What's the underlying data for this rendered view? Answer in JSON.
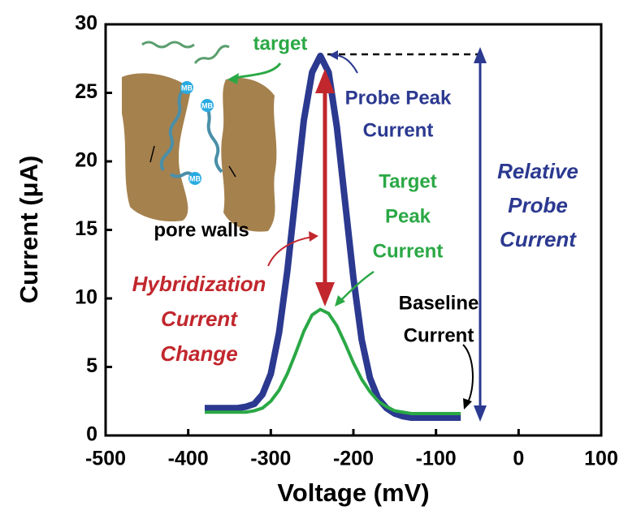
{
  "chart_data": {
    "type": "line",
    "x_label": "Voltage (mV)",
    "y_label": "Current (μA)",
    "x": [
      -380,
      -370,
      -360,
      -350,
      -340,
      -330,
      -320,
      -310,
      -300,
      -290,
      -280,
      -270,
      -260,
      -250,
      -240,
      -230,
      -220,
      -210,
      -200,
      -190,
      -180,
      -170,
      -160,
      -150,
      -140,
      -130,
      -120,
      -110,
      -100,
      -90,
      -80,
      -70
    ],
    "series": [
      {
        "color": "#2b3990",
        "values": [
          2.0,
          2.0,
          2.0,
          2.0,
          2.0,
          2.1,
          2.3,
          3.0,
          4.5,
          7.5,
          12,
          17.5,
          23,
          26.5,
          27.7,
          26.5,
          22.5,
          17,
          11.5,
          7,
          4.2,
          2.7,
          2.0,
          1.6,
          1.4,
          1.3,
          1.3,
          1.3,
          1.3,
          1.3,
          1.3,
          1.3
        ]
      },
      {
        "color": "#2aa845",
        "values": [
          1.7,
          1.7,
          1.7,
          1.7,
          1.7,
          1.7,
          1.8,
          2.0,
          2.5,
          3.3,
          4.5,
          6.0,
          7.6,
          8.8,
          9.2,
          8.9,
          8.0,
          6.7,
          5.3,
          4.1,
          3.2,
          2.5,
          2.1,
          1.8,
          1.7,
          1.6,
          1.6,
          1.6,
          1.6,
          1.6,
          1.6,
          1.6
        ]
      }
    ],
    "xlim": [
      -500,
      100
    ],
    "ylim": [
      0,
      30
    ],
    "xticks": [
      -500,
      -400,
      -300,
      -200,
      -100,
      0,
      100
    ],
    "yticks": [
      0,
      5,
      10,
      15,
      20,
      25,
      30
    ],
    "annotations": [
      {
        "lines": [
          "target"
        ],
        "color": "#2aa845"
      },
      {
        "lines": [
          "Probe Peak",
          "Current"
        ],
        "color": "#2b3990"
      },
      {
        "lines": [
          "Relative",
          "Probe",
          "Current"
        ],
        "color": "#2b3990"
      },
      {
        "lines": [
          "Target",
          "Peak",
          "Current"
        ],
        "color": "#2aa845"
      },
      {
        "lines": [
          "Hybridization",
          "Current",
          "Change"
        ],
        "color": "#c1272d"
      },
      {
        "lines": [
          "Baseline",
          "Current"
        ],
        "color": "#000000"
      },
      {
        "lines": [
          "pore walls"
        ],
        "color": "#000000"
      },
      {
        "lines": [
          "MB"
        ],
        "color": "#ffffff"
      },
      {
        "lines": [
          "MB"
        ],
        "color": "#ffffff"
      },
      {
        "lines": [
          "MB"
        ],
        "color": "#ffffff"
      }
    ]
  }
}
